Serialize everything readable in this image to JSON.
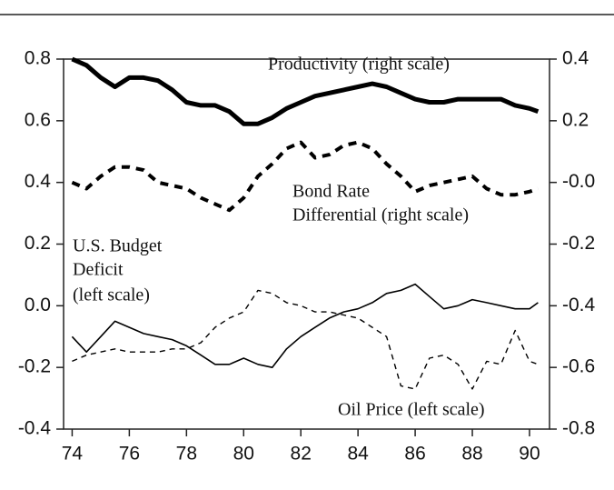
{
  "chart_data": {
    "type": "line",
    "annotations": [
      "Productivity (right scale)",
      "Bond Rate",
      "Differential (right scale)",
      "U.S. Budget",
      "Deficit",
      "(left scale)",
      "Oil Price (left scale)"
    ],
    "x": [
      74,
      74.5,
      75,
      75.5,
      76,
      76.5,
      77,
      77.5,
      78,
      78.5,
      79,
      79.5,
      80,
      80.5,
      81,
      81.5,
      82,
      82.5,
      83,
      83.5,
      84,
      84.5,
      85,
      85.5,
      86,
      86.5,
      87,
      87.5,
      88,
      88.5,
      89,
      89.5,
      90,
      90.3
    ],
    "xlim": [
      73.7,
      90.7
    ],
    "xticks": [
      74,
      76,
      78,
      80,
      82,
      84,
      86,
      88,
      90
    ],
    "ylim": [
      -0.4,
      0.8
    ],
    "yticks": [
      {
        "value": -0.4,
        "label": "-0.4"
      },
      {
        "value": -0.2,
        "label": "-0.2"
      },
      {
        "value": 0,
        "label": "0.0"
      },
      0.2,
      0.4,
      0.6,
      0.8
    ],
    "y2lim": [
      -0.8,
      0.4
    ],
    "y2ticks": [
      {
        "value": -0.8,
        "label": "-0.8"
      },
      -0.6,
      -0.4,
      -0.2,
      {
        "value": 0,
        "label": "-0.0"
      },
      0.2,
      0.4
    ],
    "grid": false,
    "series": [
      {
        "name": "Productivity",
        "axis": "y2",
        "color": "#000000",
        "linestyle": "solid",
        "linewidth": 5,
        "values": [
          0.4,
          0.38,
          0.34,
          0.31,
          0.34,
          0.34,
          0.33,
          0.3,
          0.26,
          0.25,
          0.25,
          0.23,
          0.19,
          0.19,
          0.21,
          0.24,
          0.26,
          0.28,
          0.29,
          0.3,
          0.31,
          0.32,
          0.31,
          0.29,
          0.27,
          0.26,
          0.26,
          0.27,
          0.27,
          0.27,
          0.27,
          0.25,
          0.24,
          0.23
        ]
      },
      {
        "name": "Bond Rate Differential",
        "axis": "y2",
        "color": "#000000",
        "linestyle": "dashed",
        "linewidth": 4,
        "values": [
          0.0,
          -0.02,
          0.02,
          0.05,
          0.05,
          0.04,
          0.0,
          -0.01,
          -0.02,
          -0.05,
          -0.07,
          -0.09,
          -0.05,
          0.02,
          0.06,
          0.11,
          0.13,
          0.08,
          0.09,
          0.12,
          0.13,
          0.11,
          0.06,
          0.02,
          -0.03,
          -0.01,
          0.0,
          0.01,
          0.02,
          -0.02,
          -0.04,
          -0.04,
          -0.03,
          -0.02
        ]
      },
      {
        "name": "U.S. Budget Deficit",
        "color": "#000000",
        "linestyle": "solid",
        "linewidth": 1.6,
        "values": [
          -0.1,
          -0.15,
          -0.1,
          -0.05,
          -0.07,
          -0.09,
          -0.1,
          -0.11,
          -0.13,
          -0.16,
          -0.19,
          -0.19,
          -0.17,
          -0.19,
          -0.2,
          -0.14,
          -0.1,
          -0.07,
          -0.04,
          -0.02,
          -0.01,
          0.01,
          0.04,
          0.05,
          0.07,
          0.03,
          -0.01,
          0.0,
          0.02,
          0.01,
          0.0,
          -0.01,
          -0.01,
          0.01
        ]
      },
      {
        "name": "Oil Price",
        "color": "#000000",
        "linestyle": "dashed",
        "linewidth": 1.4,
        "values": [
          -0.18,
          -0.16,
          -0.15,
          -0.14,
          -0.15,
          -0.15,
          -0.15,
          -0.14,
          -0.14,
          -0.12,
          -0.07,
          -0.04,
          -0.02,
          0.05,
          0.04,
          0.01,
          0.0,
          -0.02,
          -0.02,
          -0.03,
          -0.04,
          -0.07,
          -0.1,
          -0.26,
          -0.27,
          -0.17,
          -0.16,
          -0.19,
          -0.27,
          -0.18,
          -0.19,
          -0.08,
          -0.18,
          -0.19
        ]
      }
    ]
  }
}
